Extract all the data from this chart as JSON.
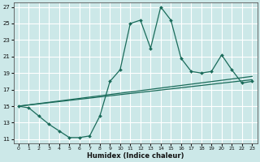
{
  "xlabel": "Humidex (Indice chaleur)",
  "ylabel": "",
  "bg_color": "#cce8e8",
  "grid_color": "#ffffff",
  "line_color": "#1a6b5a",
  "xlim": [
    -0.5,
    23.5
  ],
  "ylim": [
    10.5,
    27.5
  ],
  "xticks": [
    0,
    1,
    2,
    3,
    4,
    5,
    6,
    7,
    8,
    9,
    10,
    11,
    12,
    13,
    14,
    15,
    16,
    17,
    18,
    19,
    20,
    21,
    22,
    23
  ],
  "yticks": [
    11,
    13,
    15,
    17,
    19,
    21,
    23,
    25,
    27
  ],
  "line1_x": [
    0,
    1,
    2,
    3,
    4,
    5,
    6,
    7,
    8,
    9,
    10,
    11,
    12,
    13,
    14,
    15,
    16,
    17,
    18,
    19,
    20,
    21,
    22,
    23
  ],
  "line1_y": [
    15.0,
    14.8,
    13.8,
    12.8,
    12.0,
    11.2,
    11.2,
    11.4,
    13.8,
    18.0,
    19.4,
    25.0,
    25.4,
    22.0,
    27.0,
    25.4,
    20.8,
    19.2,
    19.0,
    19.2,
    21.2,
    19.4,
    17.8,
    18.0
  ],
  "line2_x": [
    0,
    23
  ],
  "line2_y": [
    15.0,
    18.2
  ],
  "line3_x": [
    0,
    23
  ],
  "line3_y": [
    15.0,
    18.6
  ]
}
